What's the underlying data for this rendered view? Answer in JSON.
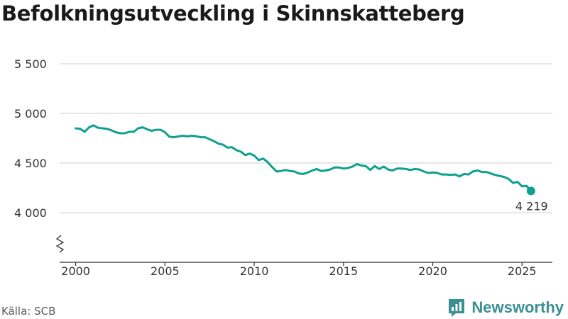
{
  "title": "Befolkningsutveckling i Skinnskatteberg",
  "source": "Källa: SCB",
  "brand": {
    "name": "Newsworthy",
    "icon": "newsworthy-logo-icon"
  },
  "colors": {
    "line": "#0fa08f",
    "grid": "#d9d9d9",
    "axis": "#333333",
    "text": "#333333",
    "brand": "#3a8f95"
  },
  "chart_data": {
    "type": "line",
    "title": "Befolkningsutveckling i Skinnskatteberg",
    "xlabel": "",
    "ylabel": "",
    "xlim": [
      1999.1,
      2026.7
    ],
    "ylim": [
      3500,
      5500
    ],
    "y_axis_break": true,
    "grid": "horizontal",
    "x_ticks": [
      2000,
      2005,
      2010,
      2015,
      2020,
      2025
    ],
    "x_tick_labels": [
      "2000",
      "2005",
      "2010",
      "2015",
      "2020",
      "2025"
    ],
    "y_ticks": [
      4000,
      4500,
      5000,
      5500
    ],
    "y_tick_labels": [
      "4 000",
      "4 500",
      "5 000",
      "5 500"
    ],
    "series": [
      {
        "x": [
          2000.0,
          2000.25,
          2000.5,
          2000.75,
          2001.0,
          2001.25,
          2001.5,
          2001.75,
          2002.0,
          2002.25,
          2002.5,
          2002.75,
          2003.0,
          2003.25,
          2003.5,
          2003.75,
          2004.0,
          2004.25,
          2004.5,
          2004.75,
          2005.0,
          2005.25,
          2005.5,
          2005.75,
          2006.0,
          2006.25,
          2006.5,
          2006.75,
          2007.0,
          2007.25,
          2007.5,
          2007.75,
          2008.0,
          2008.25,
          2008.5,
          2008.75,
          2009.0,
          2009.25,
          2009.5,
          2009.75,
          2010.0,
          2010.25,
          2010.5,
          2010.75,
          2011.0,
          2011.25,
          2011.5,
          2011.75,
          2012.0,
          2012.25,
          2012.5,
          2012.75,
          2013.0,
          2013.25,
          2013.5,
          2013.75,
          2014.0,
          2014.25,
          2014.5,
          2014.75,
          2015.0,
          2015.25,
          2015.5,
          2015.75,
          2016.0,
          2016.25,
          2016.5,
          2016.75,
          2017.0,
          2017.25,
          2017.5,
          2017.75,
          2018.0,
          2018.25,
          2018.5,
          2018.75,
          2019.0,
          2019.25,
          2019.5,
          2019.75,
          2020.0,
          2020.25,
          2020.5,
          2020.75,
          2021.0,
          2021.25,
          2021.5,
          2021.75,
          2022.0,
          2022.25,
          2022.5,
          2022.75,
          2023.0,
          2023.25,
          2023.5,
          2023.75,
          2024.0,
          2024.25,
          2024.5,
          2024.75,
          2025.0,
          2025.25,
          2025.5
        ],
        "values": [
          4850,
          4845,
          4815,
          4860,
          4880,
          4855,
          4850,
          4845,
          4830,
          4810,
          4800,
          4800,
          4815,
          4815,
          4850,
          4860,
          4840,
          4825,
          4835,
          4835,
          4810,
          4765,
          4760,
          4768,
          4775,
          4770,
          4775,
          4770,
          4760,
          4760,
          4740,
          4720,
          4695,
          4685,
          4655,
          4660,
          4630,
          4615,
          4580,
          4595,
          4575,
          4530,
          4545,
          4510,
          4460,
          4415,
          4420,
          4430,
          4420,
          4415,
          4395,
          4390,
          4405,
          4425,
          4440,
          4420,
          4425,
          4435,
          4455,
          4455,
          4445,
          4450,
          4465,
          4490,
          4475,
          4470,
          4430,
          4470,
          4440,
          4465,
          4435,
          4425,
          4445,
          4445,
          4440,
          4430,
          4440,
          4435,
          4415,
          4400,
          4405,
          4400,
          4385,
          4385,
          4380,
          4385,
          4365,
          4390,
          4385,
          4415,
          4425,
          4410,
          4410,
          4395,
          4380,
          4370,
          4360,
          4340,
          4300,
          4310,
          4265,
          4270,
          4219
        ]
      }
    ],
    "last_value": 4219,
    "last_value_label": "4 219"
  }
}
